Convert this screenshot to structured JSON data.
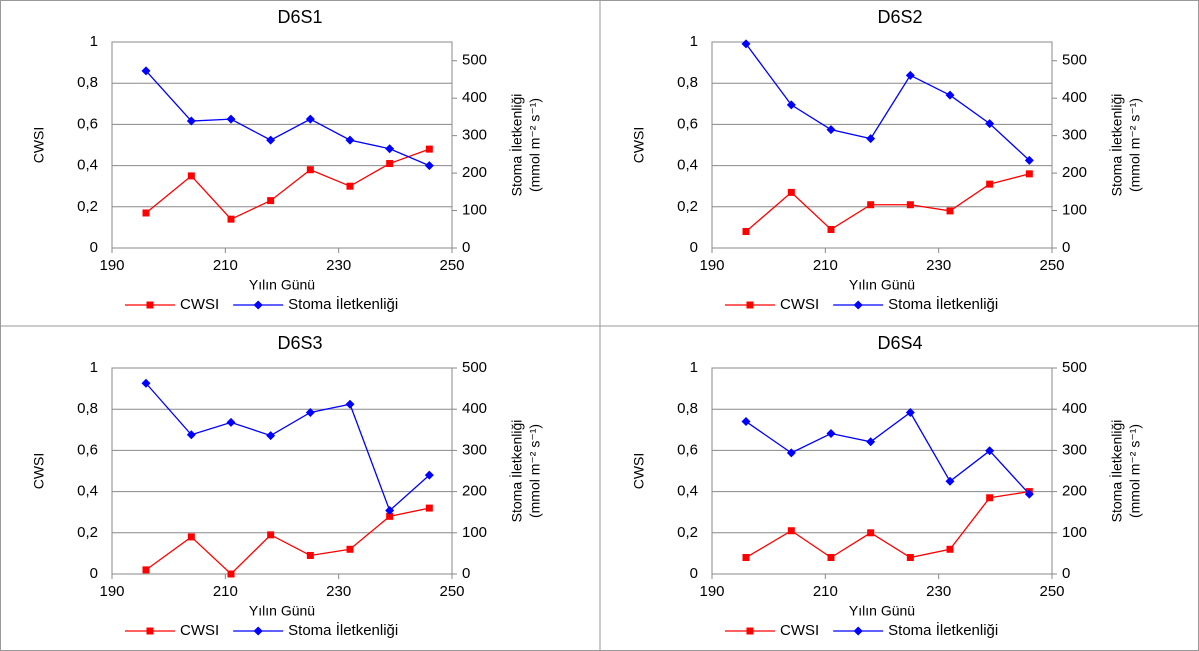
{
  "chart_data": [
    {
      "type": "line",
      "title": "D6S1",
      "x_label": "Yılın Günü",
      "y_label": "CWSI",
      "y2_label": [
        "Stoma İletkenliği",
        "(mmol m⁻² s⁻¹)"
      ],
      "x": [
        196,
        204,
        211,
        218,
        225,
        232,
        239,
        246
      ],
      "xlim": [
        190,
        250
      ],
      "xticks": [
        190,
        210,
        230,
        250
      ],
      "ylim": [
        0,
        1
      ],
      "yticks": [
        0,
        {
          "value": 0.2,
          "label": "0,2"
        },
        {
          "value": 0.4,
          "label": "0,4"
        },
        {
          "value": 0.6,
          "label": "0,6"
        },
        {
          "value": 0.8,
          "label": "0,8"
        },
        1
      ],
      "y2lim": [
        0,
        550
      ],
      "y2ticks": [
        0,
        100,
        200,
        300,
        400,
        500
      ],
      "grid": true,
      "series": [
        {
          "name": "CWSI",
          "color": "#ff0000",
          "marker": "square",
          "values": [
            0.17,
            0.35,
            0.14,
            0.23,
            0.38,
            0.3,
            0.41,
            0.48
          ]
        },
        {
          "name": "Stoma İletkenliği",
          "color": "#0000ff",
          "marker": "diamond",
          "axis": "y2",
          "values": [
            473,
            339,
            344,
            288,
            344,
            288,
            265,
            220
          ]
        }
      ]
    },
    {
      "type": "line",
      "title": "D6S2",
      "x_label": "Yılın Günü",
      "y_label": "CWSI",
      "y2_label": [
        "Stoma İletkenliği",
        "(mmol m⁻² s⁻¹)"
      ],
      "x": [
        196,
        204,
        211,
        218,
        225,
        232,
        239,
        246
      ],
      "xlim": [
        190,
        250
      ],
      "xticks": [
        190,
        210,
        230,
        250
      ],
      "ylim": [
        0,
        1
      ],
      "yticks": [
        0,
        {
          "value": 0.2,
          "label": "0,2"
        },
        {
          "value": 0.4,
          "label": "0,4"
        },
        {
          "value": 0.6,
          "label": "0,6"
        },
        {
          "value": 0.8,
          "label": "0,8"
        },
        1
      ],
      "y2lim": [
        0,
        550
      ],
      "y2ticks": [
        0,
        100,
        200,
        300,
        400,
        500
      ],
      "grid": true,
      "series": [
        {
          "name": "CWSI",
          "color": "#ff0000",
          "marker": "square",
          "values": [
            0.08,
            0.27,
            0.09,
            0.21,
            0.21,
            0.18,
            0.31,
            0.36
          ]
        },
        {
          "name": "Stoma İletkenliği",
          "color": "#0000ff",
          "marker": "diamond",
          "axis": "y2",
          "values": [
            545,
            382,
            316,
            292,
            461,
            408,
            332,
            234
          ]
        }
      ]
    },
    {
      "type": "line",
      "title": "D6S3",
      "x_label": "Yılın Günü",
      "y_label": "CWSI",
      "y2_label": [
        "Stoma İletkenliği",
        "(mmol m⁻² s⁻¹)"
      ],
      "x": [
        196,
        204,
        211,
        218,
        225,
        232,
        239,
        246
      ],
      "xlim": [
        190,
        250
      ],
      "xticks": [
        190,
        210,
        230,
        250
      ],
      "ylim": [
        0,
        1
      ],
      "yticks": [
        0,
        {
          "value": 0.2,
          "label": "0,2"
        },
        {
          "value": 0.4,
          "label": "0,4"
        },
        {
          "value": 0.6,
          "label": "0,6"
        },
        {
          "value": 0.8,
          "label": "0,8"
        },
        1
      ],
      "y2lim": [
        0,
        500
      ],
      "y2ticks": [
        0,
        100,
        200,
        300,
        400,
        500
      ],
      "grid": true,
      "series": [
        {
          "name": "CWSI",
          "color": "#ff0000",
          "marker": "square",
          "values": [
            0.02,
            0.18,
            0,
            0.19,
            0.09,
            0.12,
            0.28,
            0.32
          ]
        },
        {
          "name": "Stoma İletkenliği",
          "color": "#0000ff",
          "marker": "diamond",
          "axis": "y2",
          "values": [
            463,
            338,
            368,
            336,
            392,
            412,
            154,
            240
          ]
        }
      ]
    },
    {
      "type": "line",
      "title": "D6S4",
      "x_label": "Yılın Günü",
      "y_label": "CWSI",
      "y2_label": [
        "Stoma İletkenliği",
        "(mmol m⁻² s⁻¹)"
      ],
      "x": [
        196,
        204,
        211,
        218,
        225,
        232,
        239,
        246
      ],
      "xlim": [
        190,
        250
      ],
      "xticks": [
        190,
        210,
        230,
        250
      ],
      "ylim": [
        0,
        1
      ],
      "yticks": [
        0,
        {
          "value": 0.2,
          "label": "0,2"
        },
        {
          "value": 0.4,
          "label": "0,4"
        },
        {
          "value": 0.6,
          "label": "0,6"
        },
        {
          "value": 0.8,
          "label": "0,8"
        },
        1
      ],
      "y2lim": [
        0,
        500
      ],
      "y2ticks": [
        0,
        100,
        200,
        300,
        400,
        500
      ],
      "grid": true,
      "series": [
        {
          "name": "CWSI",
          "color": "#ff0000",
          "marker": "square",
          "values": [
            0.08,
            0.21,
            0.08,
            0.2,
            0.08,
            0.12,
            0.37,
            0.4
          ]
        },
        {
          "name": "Stoma İletkenliği",
          "color": "#0000ff",
          "marker": "diamond",
          "axis": "y2",
          "values": [
            370,
            294,
            341,
            321,
            392,
            225,
            299,
            194
          ]
        }
      ]
    }
  ]
}
